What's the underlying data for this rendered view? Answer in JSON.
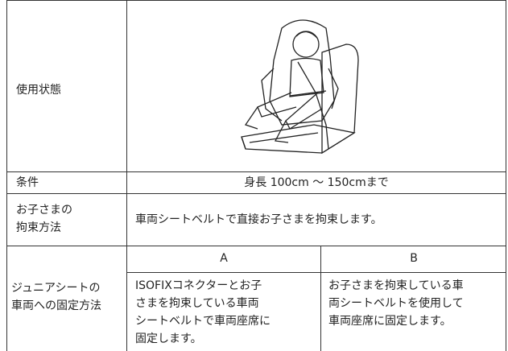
{
  "table": {
    "usage_label": "使用状態",
    "condition_label": "条件",
    "condition": "身長 100cm ～ 150cmまで",
    "restraint_label": [
      "お子さまの",
      "拘束方法"
    ],
    "restraint": "車両シートベルトで直接お子さまを拘束します。",
    "fixing_label": [
      "ジュニアシートの",
      "車両への固定方法"
    ],
    "columns": [
      "A",
      "B"
    ],
    "fixing": [
      [
        "ISOFIXコネクターとお子",
        "さまを拘束している車両",
        "シートベルトで車両座席に",
        "固定します。"
      ],
      [
        "お子さまを拘束している車",
        "両シートベルトを使用して",
        "車両座席に固定します。"
      ]
    ]
  }
}
